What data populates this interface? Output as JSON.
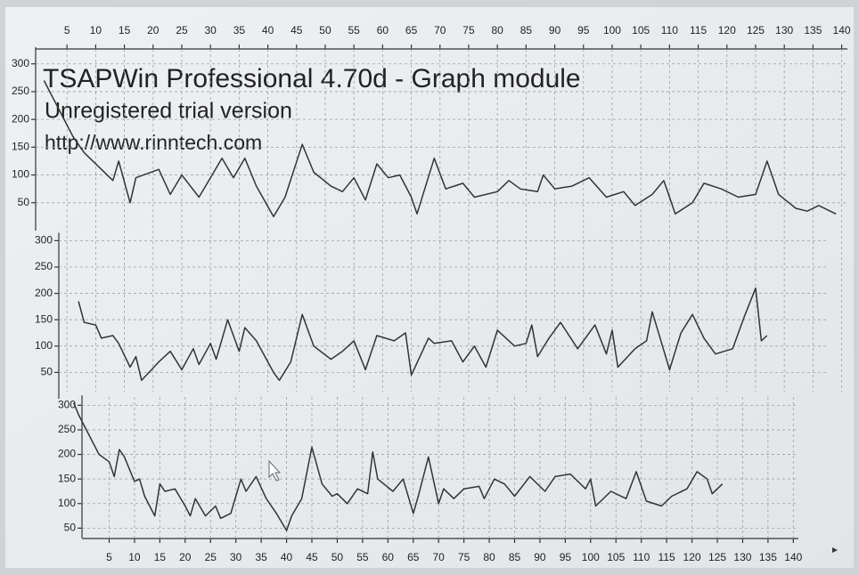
{
  "chart_data": [
    {
      "type": "line",
      "title": "TSAPWin Professional 4.70d - Graph module",
      "subtitle": "Unregistered trial version",
      "annotation": "http://www.rinntech.com",
      "x": [
        1,
        6,
        8,
        10,
        13,
        14,
        16,
        17,
        21,
        23,
        25,
        28,
        30,
        32,
        34,
        36,
        38,
        41,
        43,
        46,
        48,
        51,
        53,
        55,
        57,
        59,
        61,
        63,
        65,
        66,
        69,
        71,
        74,
        76,
        80,
        82,
        84,
        87,
        88,
        90,
        93,
        96,
        99,
        102,
        104,
        107,
        109,
        111,
        114,
        116,
        119,
        122,
        125,
        127,
        129,
        132,
        134,
        136,
        139
      ],
      "values": [
        270,
        170,
        140,
        120,
        90,
        125,
        50,
        95,
        110,
        65,
        100,
        60,
        95,
        130,
        95,
        130,
        80,
        25,
        60,
        155,
        105,
        80,
        70,
        95,
        55,
        120,
        95,
        100,
        60,
        30,
        130,
        75,
        85,
        60,
        70,
        90,
        75,
        70,
        100,
        75,
        80,
        95,
        60,
        70,
        45,
        65,
        90,
        30,
        50,
        85,
        75,
        60,
        65,
        125,
        65,
        40,
        35,
        45,
        30
      ],
      "color": "#333333",
      "xlim": [
        0,
        141
      ],
      "ylim": [
        0,
        330
      ],
      "xaxis": "top",
      "xticks": [
        5,
        10,
        15,
        20,
        25,
        30,
        35,
        40,
        45,
        50,
        55,
        60,
        65,
        70,
        75,
        80,
        85,
        90,
        95,
        100,
        105,
        110,
        115,
        120,
        125,
        130,
        135,
        140
      ],
      "yticks": [
        50,
        100,
        150,
        200,
        250,
        300
      ],
      "grid": true
    },
    {
      "type": "line",
      "x": [
        7,
        8,
        10,
        11,
        13,
        14,
        16,
        17,
        18,
        21,
        23,
        25,
        27,
        28,
        30,
        31,
        33,
        35,
        36,
        38,
        41,
        42,
        44,
        46,
        48,
        51,
        53,
        55,
        57,
        59,
        62,
        64,
        65,
        68,
        69,
        72,
        74,
        76,
        78,
        80,
        83,
        85,
        86,
        87,
        89,
        91,
        94,
        97,
        99,
        100,
        101,
        104,
        106,
        107,
        110,
        112,
        114,
        116,
        118,
        121,
        123,
        125,
        126,
        127
      ],
      "values": [
        185,
        145,
        140,
        115,
        120,
        105,
        60,
        80,
        35,
        70,
        90,
        55,
        95,
        65,
        105,
        75,
        150,
        90,
        135,
        110,
        50,
        35,
        70,
        160,
        100,
        75,
        90,
        110,
        55,
        120,
        110,
        125,
        45,
        115,
        105,
        110,
        70,
        100,
        60,
        130,
        100,
        105,
        140,
        80,
        115,
        145,
        95,
        140,
        85,
        130,
        60,
        95,
        110,
        165,
        55,
        125,
        160,
        115,
        85,
        95,
        155,
        210,
        110,
        120
      ],
      "color": "#333333",
      "xlim": [
        0,
        141
      ],
      "ylim": [
        0,
        315
      ],
      "yticks": [
        50,
        100,
        150,
        200,
        250,
        300
      ],
      "grid": true
    },
    {
      "type": "line",
      "x": [
        -2,
        -1,
        1,
        3,
        5,
        6,
        7,
        8,
        10,
        11,
        12,
        14,
        15,
        16,
        18,
        20,
        21,
        22,
        24,
        26,
        27,
        29,
        31,
        32,
        34,
        36,
        38,
        40,
        41,
        43,
        45,
        47,
        49,
        50,
        52,
        54,
        56,
        57,
        58,
        61,
        63,
        65,
        66,
        68,
        70,
        71,
        73,
        75,
        78,
        79,
        81,
        83,
        85,
        88,
        91,
        93,
        96,
        99,
        100,
        101,
        104,
        107,
        109,
        111,
        114,
        116,
        119,
        121,
        123,
        124,
        126
      ],
      "values": [
        305,
        280,
        240,
        200,
        185,
        155,
        210,
        195,
        145,
        150,
        115,
        75,
        140,
        125,
        130,
        95,
        75,
        110,
        75,
        95,
        70,
        80,
        150,
        125,
        155,
        110,
        80,
        45,
        75,
        110,
        215,
        140,
        115,
        120,
        100,
        130,
        120,
        205,
        150,
        125,
        150,
        80,
        115,
        195,
        100,
        130,
        110,
        130,
        135,
        110,
        150,
        140,
        115,
        155,
        125,
        155,
        160,
        130,
        150,
        95,
        125,
        110,
        165,
        105,
        95,
        115,
        130,
        165,
        150,
        120,
        140
      ],
      "color": "#333333",
      "xlim": [
        -3,
        141
      ],
      "ylim": [
        30,
        320
      ],
      "xaxis": "bottom",
      "xticks": [
        5,
        10,
        15,
        20,
        25,
        30,
        35,
        40,
        45,
        50,
        55,
        60,
        65,
        70,
        75,
        80,
        85,
        90,
        95,
        100,
        105,
        110,
        115,
        120,
        125,
        130,
        135,
        140
      ],
      "yticks": [
        50,
        100,
        150,
        200,
        250,
        300
      ],
      "grid": true
    }
  ]
}
